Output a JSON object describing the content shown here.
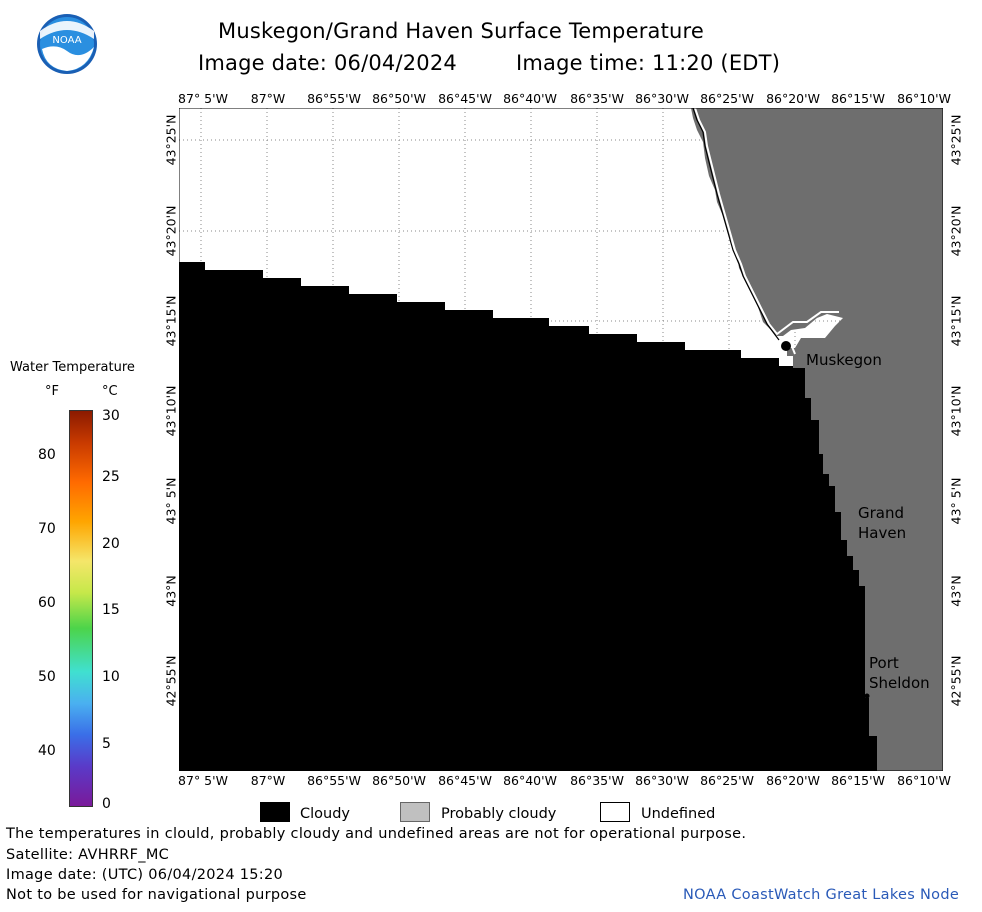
{
  "header": {
    "title": "Muskegon/Grand Haven Surface Temperature",
    "image_date": "Image date: 06/04/2024",
    "image_time": "Image time: 11:20 (EDT)"
  },
  "logo": {
    "text": "NOAA"
  },
  "longitude_labels": [
    "87° 5'W",
    "87°W",
    "86°55'W",
    "86°50'W",
    "86°45'W",
    "86°40'W",
    "86°35'W",
    "86°30'W",
    "86°25'W",
    "86°20'W",
    "86°15'W",
    "86°10'W"
  ],
  "latitude_labels": [
    "43°25'N",
    "43°20'N",
    "43°15'N",
    "43°10'N",
    "43° 5'N",
    "43°N",
    "42°55'N"
  ],
  "places": {
    "muskegon": "Muskegon",
    "grand_haven": [
      "Grand",
      "Haven"
    ],
    "port_sheldon": [
      "Port",
      "Sheldon"
    ]
  },
  "colorbar": {
    "title": "Water Temperature",
    "unit_f": "°F",
    "unit_c": "°C",
    "f_ticks": [
      "80",
      "70",
      "60",
      "50",
      "40"
    ],
    "c_ticks": [
      "30",
      "25",
      "20",
      "15",
      "10",
      "5",
      "0"
    ]
  },
  "legend": {
    "cloudy": "Cloudy",
    "probably_cloudy": "Probably cloudy",
    "undefined": "Undefined"
  },
  "colors": {
    "cloudy": "#000000",
    "land": "#6e6e6e",
    "probably_cloudy": "#c0c0c0",
    "undefined": "#ffffff"
  },
  "footer": {
    "disclaimer": "The temperatures in clould, probably cloudy and undefined areas are not for operational purpose.",
    "satellite": "Satellite: AVHRRF_MC",
    "utc_date": "Image date: (UTC) 06/04/2024  15:20",
    "nav_warning": "Not to be used for navigational purpose",
    "credit": "NOAA CoastWatch Great Lakes Node"
  }
}
